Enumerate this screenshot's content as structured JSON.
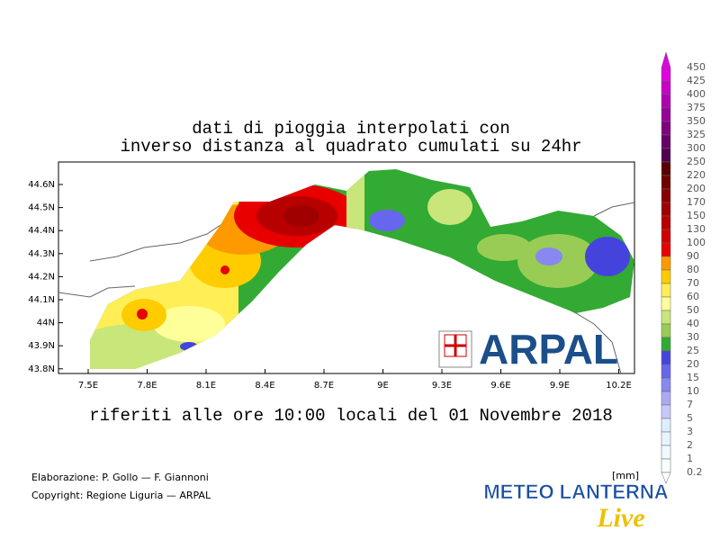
{
  "title": [
    "dati di pioggia interpolati con",
    "inverso distanza al quadrato cumulati su 24hr"
  ],
  "subtitle": "riferiti alle ore 10:00 locali del 01 Novembre 2018",
  "x_ticks": [
    "7.5E",
    "7.8E",
    "8.1E",
    "8.4E",
    "8.7E",
    "9E",
    "9.3E",
    "9.6E",
    "9.9E",
    "10.2E"
  ],
  "y_ticks": [
    "44.6N",
    "44.5N",
    "44.4N",
    "44.3N",
    "44.2N",
    "44.1N",
    "44N",
    "43.9N",
    "43.8N"
  ],
  "credits": [
    "Elaborazione: P. Gollo — F. Giannoni",
    "Copyright: Regione Liguria — ARPAL"
  ],
  "legend": {
    "unit": "[mm]",
    "labels": [
      450,
      425,
      400,
      375,
      350,
      325,
      300,
      250,
      220,
      200,
      170,
      150,
      130,
      100,
      90,
      80,
      70,
      60,
      50,
      40,
      30,
      25,
      20,
      15,
      10,
      7,
      5,
      3,
      2,
      1,
      0.2
    ],
    "colors": [
      "#e000e0",
      "#c800c8",
      "#b000b0",
      "#980098",
      "#800080",
      "#680068",
      "#500050",
      "#5a0000",
      "#700000",
      "#880000",
      "#a00000",
      "#b80000",
      "#d00000",
      "#e80000",
      "#ff9900",
      "#ffcc00",
      "#ffee55",
      "#ffff99",
      "#c8e67a",
      "#99cc55",
      "#33aa33",
      "#4444dd",
      "#6666ee",
      "#8888f0",
      "#aaaaf5",
      "#c8c8fa",
      "#ddeeff",
      "#e8f4ff",
      "#f0faff",
      "#f8ffff",
      "#ffffff"
    ]
  },
  "logos": {
    "arpal": "ARPAL",
    "meteo": "METEO LANTERNA",
    "live": "Live"
  }
}
